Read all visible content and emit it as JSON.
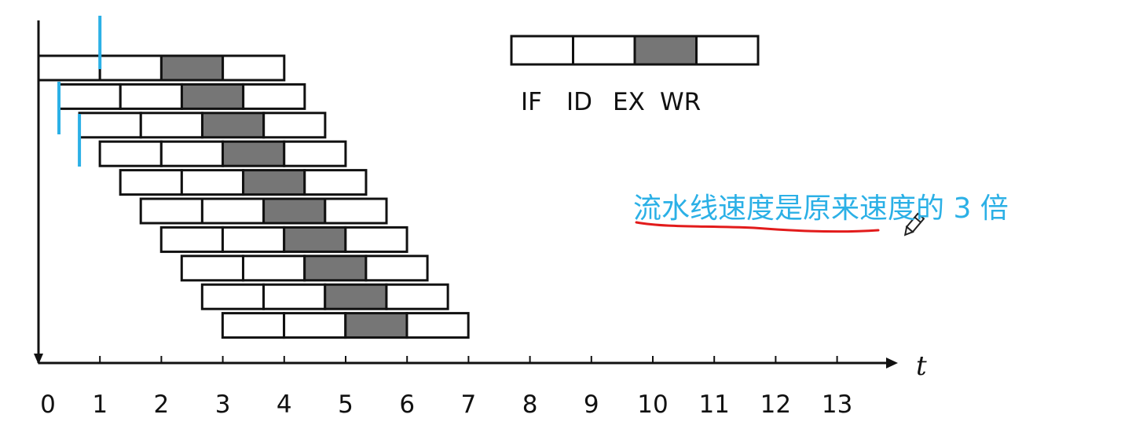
{
  "legend": {
    "stages": [
      "IF",
      "ID",
      "EX",
      "WR"
    ],
    "highlighted_stage": "EX"
  },
  "timeline": {
    "axis_variable": "t",
    "ticks": [
      "0",
      "1",
      "2",
      "3",
      "4",
      "5",
      "6",
      "7",
      "8",
      "9",
      "10",
      "11",
      "12",
      "13"
    ]
  },
  "pipeline": {
    "instruction_count": 10,
    "stage_length": 1,
    "instruction_interval": 0.333,
    "first_start": 0,
    "last_end": 7
  },
  "annotation": {
    "text": "流水线速度是原来速度的 3 倍"
  },
  "colors": {
    "stage_fill": "#ffffff",
    "highlight_fill": "#767676",
    "outline": "#111111",
    "clock_marker": "#2bb0e6",
    "underline": "#e21b1b",
    "note_text": "#2bb0e6"
  },
  "icons": [
    "pencil-cursor-icon"
  ]
}
